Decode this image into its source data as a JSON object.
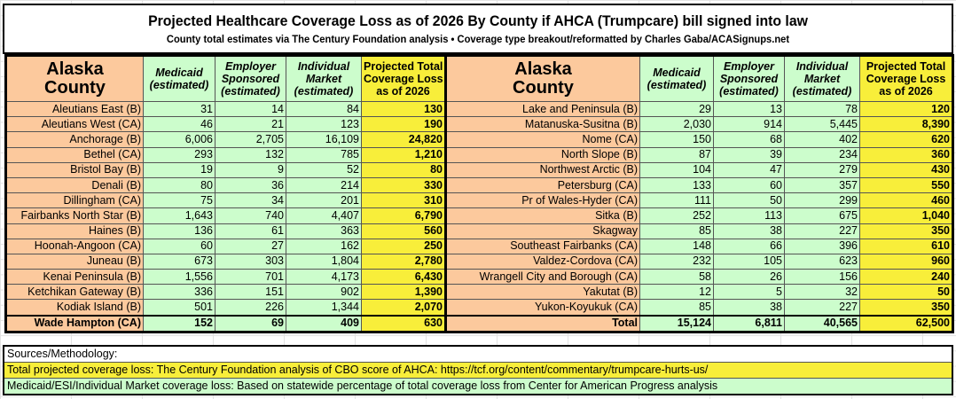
{
  "title": "Projected Healthcare Coverage Loss as of 2026 By County if AHCA (Trumpcare) bill signed into law",
  "subtitle": "County total estimates via The Century Foundation analysis • Coverage type breakout/reformatted by Charles Gaba/ACASignups.net",
  "colors": {
    "county": "#fcc99d",
    "estimate": "#ccfdcc",
    "total": "#f8ee3a"
  },
  "headers": {
    "county": [
      "Alaska",
      "County"
    ],
    "medicaid": [
      "Medicaid",
      "(estimated)"
    ],
    "employer": [
      "Employer",
      "Sponsored",
      "(estimated)"
    ],
    "individual": [
      "Individual",
      "Market",
      "(estimated)"
    ],
    "total": [
      "Projected Total",
      "Coverage Loss",
      "as of 2026"
    ]
  },
  "left_rows": [
    [
      "Aleutians East (B)",
      "31",
      "14",
      "84",
      "130"
    ],
    [
      "Aleutians West (CA)",
      "46",
      "21",
      "123",
      "190"
    ],
    [
      "Anchorage (B)",
      "6,006",
      "2,705",
      "16,109",
      "24,820"
    ],
    [
      "Bethel (CA)",
      "293",
      "132",
      "785",
      "1,210"
    ],
    [
      "Bristol Bay (B)",
      "19",
      "9",
      "52",
      "80"
    ],
    [
      "Denali (B)",
      "80",
      "36",
      "214",
      "330"
    ],
    [
      "Dillingham (CA)",
      "75",
      "34",
      "201",
      "310"
    ],
    [
      "Fairbanks North Star (B)",
      "1,643",
      "740",
      "4,407",
      "6,790"
    ],
    [
      "Haines (B)",
      "136",
      "61",
      "363",
      "560"
    ],
    [
      "Hoonah-Angoon (CA)",
      "60",
      "27",
      "162",
      "250"
    ],
    [
      "Juneau (B)",
      "673",
      "303",
      "1,804",
      "2,780"
    ],
    [
      "Kenai Peninsula (B)",
      "1,556",
      "701",
      "4,173",
      "6,430"
    ],
    [
      "Ketchikan Gateway (B)",
      "336",
      "151",
      "902",
      "1,390"
    ],
    [
      "Kodiak Island (B)",
      "501",
      "226",
      "1,344",
      "2,070"
    ],
    [
      "Wade Hampton (CA)",
      "152",
      "69",
      "409",
      "630"
    ]
  ],
  "right_rows": [
    [
      "Lake and Peninsula (B)",
      "29",
      "13",
      "78",
      "120"
    ],
    [
      "Matanuska-Susitna (B)",
      "2,030",
      "914",
      "5,445",
      "8,390"
    ],
    [
      "Nome (CA)",
      "150",
      "68",
      "402",
      "620"
    ],
    [
      "North Slope (B)",
      "87",
      "39",
      "234",
      "360"
    ],
    [
      "Northwest Arctic (B)",
      "104",
      "47",
      "279",
      "430"
    ],
    [
      "Petersburg (CA)",
      "133",
      "60",
      "357",
      "550"
    ],
    [
      "Pr of Wales-Hyder (CA)",
      "111",
      "50",
      "299",
      "460"
    ],
    [
      "Sitka (B)",
      "252",
      "113",
      "675",
      "1,040"
    ],
    [
      "Skagway",
      "85",
      "38",
      "227",
      "350"
    ],
    [
      "Southeast Fairbanks (CA)",
      "148",
      "66",
      "396",
      "610"
    ],
    [
      "Valdez-Cordova (CA)",
      "232",
      "105",
      "623",
      "960"
    ],
    [
      "Wrangell City and Borough (CA)",
      "58",
      "26",
      "156",
      "240"
    ],
    [
      "Yakutat (B)",
      "12",
      "5",
      "32",
      "50"
    ],
    [
      "Yukon-Koyukuk (CA)",
      "85",
      "38",
      "227",
      "350"
    ]
  ],
  "total_row": [
    "Total",
    "15,124",
    "6,811",
    "40,565",
    "62,500"
  ],
  "sources": [
    "Sources/Methodology:",
    "Total projected coverage loss: The Century Foundation analysis of CBO score of AHCA: https://tcf.org/content/commentary/trumpcare-hurts-us/",
    "Medicaid/ESI/Individual Market coverage loss: Based on statewide percentage of total coverage loss from Center for American Progress analysis"
  ]
}
